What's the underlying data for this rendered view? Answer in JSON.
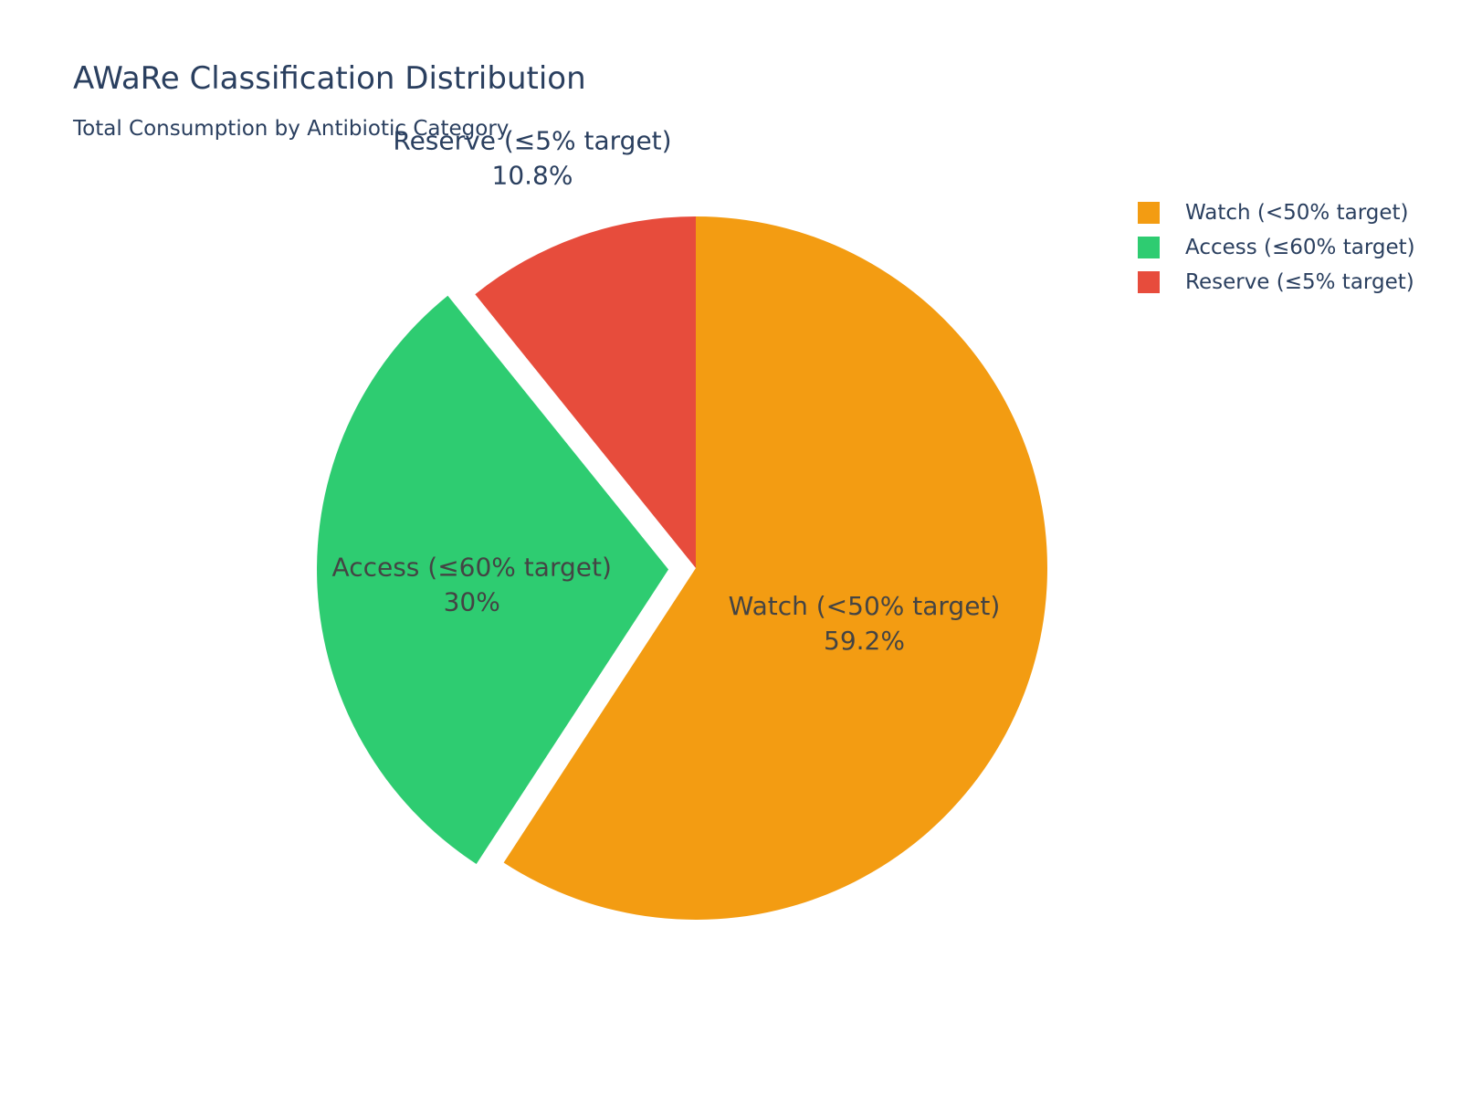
{
  "header": {
    "title": "AWaRe Classification Distribution",
    "subtitle": "Total Consumption by Antibiotic Category"
  },
  "chart_data": {
    "type": "pie",
    "title": "AWaRe Classification Distribution",
    "subtitle": "Total Consumption by Antibiotic Category",
    "slices": [
      {
        "label": "Watch (<50% target)",
        "value": 59.2,
        "display": "59.2%",
        "color": "#f39c12",
        "pulled": false
      },
      {
        "label": "Access (≤60% target)",
        "value": 30.0,
        "display": "30%",
        "color": "#2ecc71",
        "pulled": true
      },
      {
        "label": "Reserve (≤5% target)",
        "value": 10.8,
        "display": "10.8%",
        "color": "#e74c3c",
        "pulled": false
      }
    ],
    "legend_position": "top-right",
    "direction": "clockwise",
    "start": "12 o'clock"
  },
  "legend": {
    "items": [
      {
        "label": "Watch (<50% target)",
        "color": "#f39c12"
      },
      {
        "label": "Access (≤60% target)",
        "color": "#2ecc71"
      },
      {
        "label": "Reserve (≤5% target)",
        "color": "#e74c3c"
      }
    ]
  }
}
